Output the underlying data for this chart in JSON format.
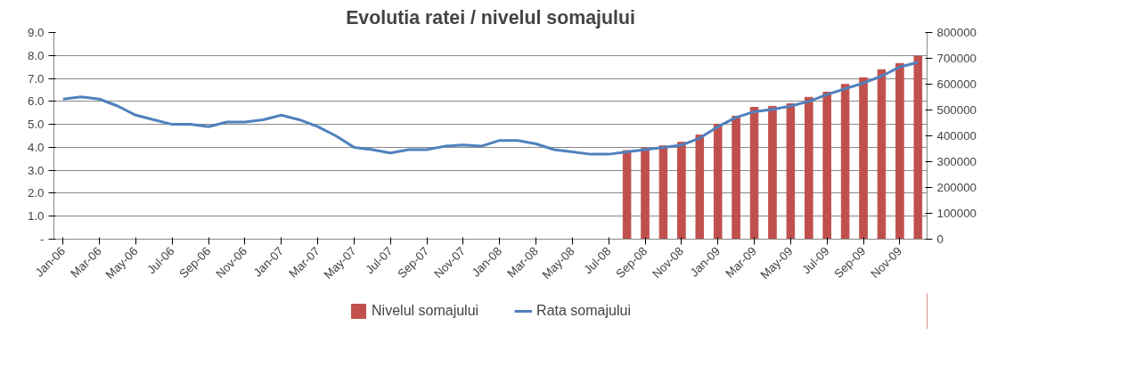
{
  "chart_data": {
    "type": "bar",
    "title": "Evolutia ratei / nivelul somajului",
    "categories": [
      "Jan-06",
      null,
      "Mar-06",
      null,
      "May-06",
      null,
      "Jul-06",
      null,
      "Sep-06",
      null,
      "Nov-06",
      null,
      "Jan-07",
      null,
      "Mar-07",
      null,
      "May-07",
      null,
      "Jul-07",
      null,
      "Sep-07",
      null,
      "Nov-07",
      null,
      "Jan-08",
      null,
      "Mar-08",
      null,
      "May-08",
      null,
      "Jul-08",
      null,
      "Sep-08",
      null,
      "Nov-08",
      null,
      "Jan-09",
      null,
      "Mar-09",
      null,
      "May-09",
      null,
      "Jul-09",
      null,
      "Sep-09",
      null,
      "Nov-09",
      null
    ],
    "series": [
      {
        "name": "Nivelul somajului",
        "axis": "y2",
        "color": "#c0504d",
        "values": [
          null,
          null,
          null,
          null,
          null,
          null,
          null,
          null,
          null,
          null,
          null,
          null,
          null,
          null,
          null,
          null,
          null,
          null,
          null,
          null,
          null,
          null,
          null,
          null,
          null,
          null,
          null,
          null,
          null,
          null,
          null,
          343000,
          352000,
          361000,
          375000,
          403000,
          445000,
          476000,
          510000,
          514000,
          524000,
          549000,
          569000,
          599000,
          625000,
          656000,
          680000,
          709000
        ]
      },
      {
        "name": "Rata somajului",
        "type": "line",
        "color": "#4f81bd",
        "values": [
          6.1,
          6.2,
          6.1,
          5.8,
          5.4,
          5.2,
          5.0,
          5.0,
          4.9,
          5.1,
          5.1,
          5.2,
          5.4,
          5.2,
          4.9,
          4.5,
          4.0,
          3.9,
          3.75,
          3.9,
          3.9,
          4.05,
          4.1,
          4.05,
          4.3,
          4.3,
          4.15,
          3.9,
          3.8,
          3.7,
          3.7,
          3.8,
          3.9,
          4.0,
          4.1,
          4.4,
          4.9,
          5.3,
          5.55,
          5.65,
          5.8,
          6.0,
          6.3,
          6.55,
          6.8,
          7.1,
          7.5,
          7.7
        ]
      }
    ],
    "ylim": [
      0,
      9
    ],
    "yticks": [
      {
        "value": 0,
        "label": "-"
      },
      {
        "value": 1,
        "label": "1.0"
      },
      {
        "value": 2,
        "label": "2.0"
      },
      {
        "value": 3,
        "label": "3.0"
      },
      {
        "value": 4,
        "label": "4.0"
      },
      {
        "value": 5,
        "label": "5.0"
      },
      {
        "value": 6,
        "label": "6.0"
      },
      {
        "value": 7,
        "label": "7.0"
      },
      {
        "value": 8,
        "label": "8.0"
      },
      {
        "value": 9,
        "label": "9.0"
      }
    ],
    "y2lim": [
      0,
      800000
    ],
    "y2ticks": [
      0,
      100000,
      200000,
      300000,
      400000,
      500000,
      600000,
      700000,
      800000
    ],
    "grid": "y",
    "legend": "bottom",
    "marker": "none",
    "line_style": "solid"
  }
}
